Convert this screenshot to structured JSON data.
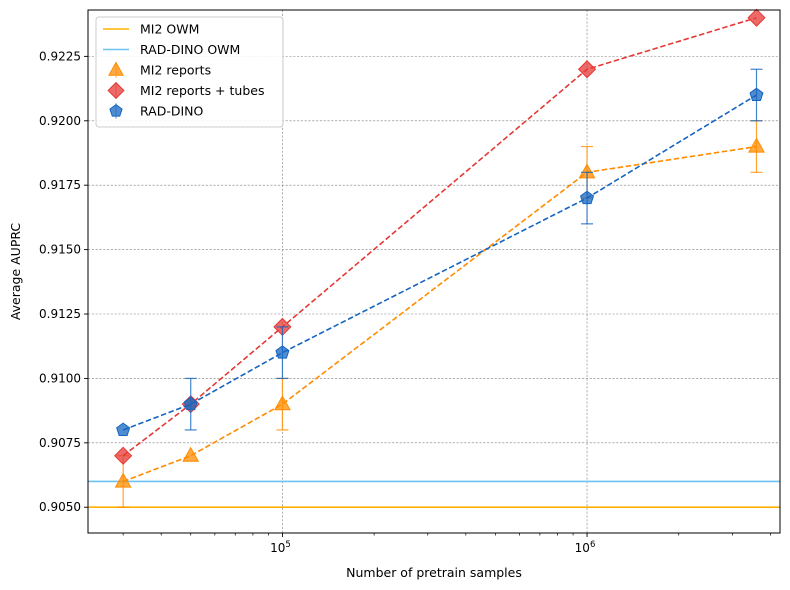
{
  "chart_data": {
    "type": "line",
    "xscale": "log",
    "xlabel": "Number of pretrain samples",
    "ylabel": "Average AUPRC",
    "xlim": [
      23000,
      4300000
    ],
    "ylim": [
      0.904,
      0.9243
    ],
    "x_major_ticks": [
      {
        "value": 100000,
        "base": "10",
        "exp": "5"
      },
      {
        "value": 1000000,
        "base": "10",
        "exp": "6"
      }
    ],
    "y_ticks": [
      0.905,
      0.9075,
      0.91,
      0.9125,
      0.915,
      0.9175,
      0.92,
      0.9225
    ],
    "y_tick_labels": [
      "0.9050",
      "0.9075",
      "0.9100",
      "0.9125",
      "0.9150",
      "0.9175",
      "0.9200",
      "0.9225"
    ],
    "grid": true,
    "legend_position": "top-left",
    "hlines": [
      {
        "name": "MI2 OWM",
        "y": 0.905,
        "color": "#FFB000"
      },
      {
        "name": "RAD-DINO OWM",
        "y": 0.906,
        "color": "#6EC1F0"
      }
    ],
    "series": [
      {
        "name": "MI2 reports",
        "marker": "triangle",
        "color": "#FF8C00",
        "points": [
          {
            "x": 30000,
            "y": 0.906,
            "err": 0.001
          },
          {
            "x": 50000,
            "y": 0.907,
            "err": 0
          },
          {
            "x": 100000,
            "y": 0.909,
            "err": 0.001
          },
          {
            "x": 1000000,
            "y": 0.918,
            "err": 0.001
          },
          {
            "x": 3600000,
            "y": 0.919,
            "err": 0.001
          }
        ]
      },
      {
        "name": "MI2 reports + tubes",
        "marker": "diamond",
        "color": "#E53935",
        "points": [
          {
            "x": 30000,
            "y": 0.907,
            "err": 0
          },
          {
            "x": 50000,
            "y": 0.909,
            "err": 0
          },
          {
            "x": 100000,
            "y": 0.912,
            "err": 0
          },
          {
            "x": 1000000,
            "y": 0.922,
            "err": 0
          },
          {
            "x": 3600000,
            "y": 0.924,
            "err": 0
          }
        ]
      },
      {
        "name": "RAD-DINO",
        "marker": "pentagon",
        "color": "#1565C0",
        "points": [
          {
            "x": 30000,
            "y": 0.908,
            "err": 0
          },
          {
            "x": 50000,
            "y": 0.909,
            "err": 0.001
          },
          {
            "x": 100000,
            "y": 0.911,
            "err": 0.001
          },
          {
            "x": 1000000,
            "y": 0.917,
            "err": 0.001
          },
          {
            "x": 3600000,
            "y": 0.921,
            "err": 0.001
          }
        ]
      }
    ],
    "legend": [
      {
        "label": "MI2 OWM",
        "kind": "line",
        "color": "#FFB000"
      },
      {
        "label": "RAD-DINO OWM",
        "kind": "line",
        "color": "#6EC1F0"
      },
      {
        "label": "MI2 reports",
        "kind": "triangle",
        "color": "#FF8C00"
      },
      {
        "label": "MI2 reports + tubes",
        "kind": "diamond",
        "color": "#E53935"
      },
      {
        "label": "RAD-DINO",
        "kind": "pentagon",
        "color": "#1565C0"
      }
    ]
  }
}
